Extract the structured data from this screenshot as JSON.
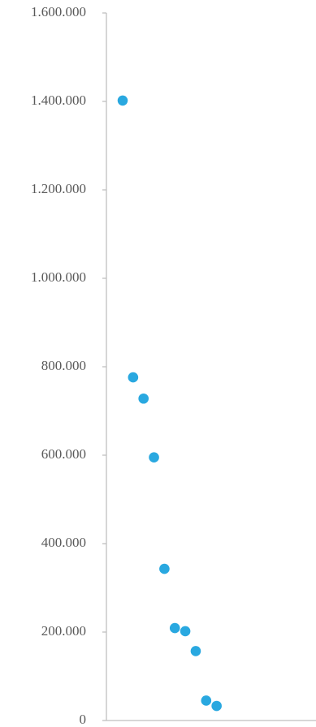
{
  "chart_data": {
    "type": "scatter",
    "title": "",
    "xlabel": "",
    "ylabel": "",
    "ylim": [
      0,
      1600000
    ],
    "y_ticks": [
      0,
      200000,
      400000,
      600000,
      800000,
      1000000,
      1200000,
      1400000,
      1600000
    ],
    "y_tick_labels": [
      "0",
      "200.000",
      "400.000",
      "600.000",
      "800.000",
      "1.000.000",
      "1.200.000",
      "1.400.000",
      "1.600.000"
    ],
    "grid": false,
    "legend": "none",
    "colors": {
      "marker": "#29a8e0",
      "axis": "#bfbfbf",
      "text": "#595959"
    },
    "x": [
      1,
      2,
      3,
      4,
      5,
      6,
      7,
      8,
      9,
      10
    ],
    "y": [
      1402000,
      776000,
      728000,
      595000,
      343000,
      209000,
      202000,
      157000,
      45000,
      33000
    ]
  }
}
